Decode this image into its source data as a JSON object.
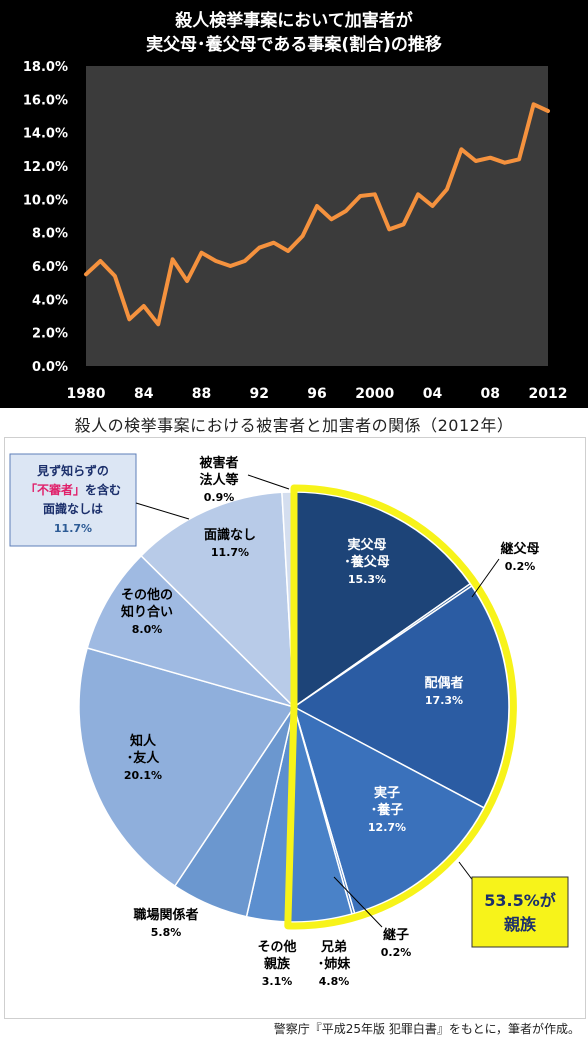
{
  "chart_data": [
    {
      "type": "line",
      "title_lines": [
        "殺人検挙事案において加害者が",
        "実父母･養父母である事案(割合)の推移"
      ],
      "x_tick_labels": [
        "1980",
        "84",
        "88",
        "92",
        "96",
        "2000",
        "04",
        "08",
        "2012"
      ],
      "x_ticks": [
        1980,
        1984,
        1988,
        1992,
        1996,
        2000,
        2004,
        2008,
        2012
      ],
      "y_tick_labels": [
        "0.0%",
        "2.0%",
        "4.0%",
        "6.0%",
        "8.0%",
        "10.0%",
        "12.0%",
        "14.0%",
        "16.0%",
        "18.0%"
      ],
      "ylim": [
        0,
        18
      ],
      "xlim": [
        1980,
        2012
      ],
      "grid": false,
      "line_color": "#f5923e",
      "series": [
        {
          "x": [
            1980,
            1981,
            1982,
            1983,
            1984,
            1985,
            1986,
            1987,
            1988,
            1989,
            1990,
            1991,
            1992,
            1993,
            1994,
            1995,
            1996,
            1997,
            1998,
            1999,
            2000,
            2001,
            2002,
            2003,
            2004,
            2005,
            2006,
            2007,
            2008,
            2009,
            2010,
            2011,
            2012
          ],
          "y": [
            5.5,
            6.3,
            5.4,
            2.8,
            3.6,
            2.5,
            6.4,
            5.1,
            6.8,
            6.3,
            6.0,
            6.3,
            7.1,
            7.4,
            6.9,
            7.8,
            9.6,
            8.8,
            9.3,
            10.2,
            10.3,
            8.2,
            8.5,
            10.3,
            9.6,
            10.6,
            13.0,
            12.3,
            12.5,
            12.2,
            12.4,
            15.7,
            15.3
          ]
        }
      ]
    },
    {
      "type": "pie",
      "title": "殺人の検挙事案における被害者と加害者の関係（2012年）",
      "slices": [
        {
          "label_lines": [
            "実父母",
            "･養父母"
          ],
          "value": 15.3,
          "value_label": "15.3%",
          "color": "#1d4478"
        },
        {
          "label_lines": [
            "継父母"
          ],
          "value": 0.2,
          "value_label": "0.2%",
          "color": "#2d5b95"
        },
        {
          "label_lines": [
            "配偶者"
          ],
          "value": 17.3,
          "value_label": "17.3%",
          "color": "#2b5ca3"
        },
        {
          "label_lines": [
            "実子",
            "･養子"
          ],
          "value": 12.7,
          "value_label": "12.7%",
          "color": "#3a71bb"
        },
        {
          "label_lines": [
            "継子"
          ],
          "value": 0.2,
          "value_label": "0.2%",
          "color": "#3c73be"
        },
        {
          "label_lines": [
            "兄弟",
            "･姉妹"
          ],
          "value": 4.8,
          "value_label": "4.8%",
          "color": "#4a82c8"
        },
        {
          "label_lines": [
            "その他",
            "親族"
          ],
          "value": 3.1,
          "value_label": "3.1%",
          "color": "#5c8fcf"
        },
        {
          "label_lines": [
            "職場関係者"
          ],
          "value": 5.8,
          "value_label": "5.8%",
          "color": "#6b97cf"
        },
        {
          "label_lines": [
            "知人",
            "･友人"
          ],
          "value": 20.1,
          "value_label": "20.1%",
          "color": "#8fafdc"
        },
        {
          "label_lines": [
            "その他の",
            "知り合い"
          ],
          "value": 8.0,
          "value_label": "8.0%",
          "color": "#9fbae2"
        },
        {
          "label_lines": [
            "面識なし"
          ],
          "value": 11.7,
          "value_label": "11.7%",
          "color": "#b8cbe8"
        },
        {
          "label_lines": [
            "被害者",
            "法人等"
          ],
          "value": 0.9,
          "value_label": "0.9%",
          "color": "#d4deef"
        }
      ],
      "highlight": {
        "text_lines": [
          "53.5%が",
          "親族"
        ],
        "color": "#f7f31a",
        "slice_range": [
          0,
          5
        ]
      },
      "callout": {
        "line1": "見ず知らずの",
        "line2_accent": "「不審者」",
        "line2_rest": "を含む",
        "line3": "面識なしは",
        "line4": "11.7%",
        "accent_color": "#e0206a"
      }
    }
  ],
  "footer": "警察庁『平成25年版 犯罪白書』をもとに，筆者が作成。"
}
